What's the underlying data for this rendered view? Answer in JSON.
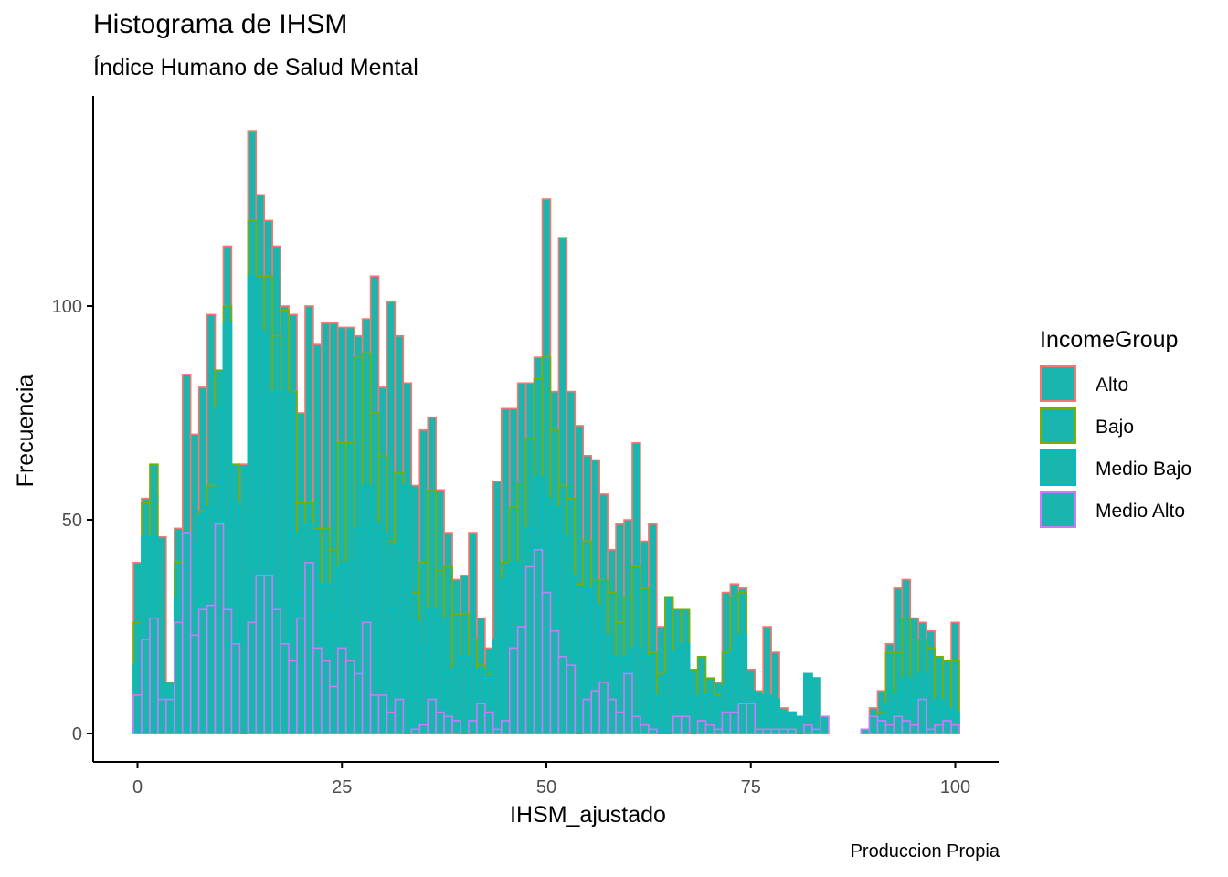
{
  "title": "Histograma de IHSM",
  "subtitle": "Índice Humano de Salud Mental",
  "caption": "Produccion Propia",
  "chart_data": {
    "type": "bar",
    "stacked": true,
    "xlabel": "IHSM_ajustado",
    "ylabel": "Frecuencia",
    "xlim": [
      -1,
      102
    ],
    "ylim": [
      0,
      143
    ],
    "x_ticks": [
      0,
      25,
      50,
      75,
      100
    ],
    "y_ticks": [
      0,
      50,
      100
    ],
    "x_tick_labels": [
      "0",
      "25",
      "50",
      "75",
      "100"
    ],
    "y_tick_labels": [
      "0",
      "50",
      "100"
    ],
    "grid": false,
    "legend_position": "right",
    "legend_title": "IncomeGroup",
    "fill_color": "#1ab5ad",
    "x": [
      0,
      1,
      2,
      3,
      4,
      5,
      6,
      7,
      8,
      9,
      10,
      11,
      12,
      13,
      14,
      15,
      16,
      17,
      18,
      19,
      20,
      21,
      22,
      23,
      24,
      25,
      26,
      27,
      28,
      29,
      30,
      31,
      32,
      33,
      34,
      35,
      36,
      37,
      38,
      39,
      40,
      41,
      42,
      43,
      44,
      45,
      46,
      47,
      48,
      49,
      50,
      51,
      52,
      53,
      54,
      55,
      56,
      57,
      58,
      59,
      60,
      61,
      62,
      63,
      64,
      65,
      66,
      67,
      68,
      69,
      70,
      71,
      72,
      73,
      74,
      75,
      76,
      77,
      78,
      79,
      80,
      81,
      82,
      83,
      84,
      85,
      86,
      87,
      88,
      89,
      90,
      91,
      92,
      93,
      94,
      95,
      96,
      97,
      98,
      99,
      100
    ],
    "series": [
      {
        "name": "Medio Alto",
        "color": "#c77cff",
        "values": [
          9,
          22,
          27,
          8,
          8,
          26,
          47,
          23,
          29,
          30,
          49,
          29,
          21,
          0,
          26,
          37,
          37,
          29,
          21,
          17,
          27,
          40,
          20,
          17,
          11,
          20,
          17,
          14,
          26,
          9,
          9,
          5,
          8,
          0,
          1,
          2,
          8,
          5,
          4,
          3,
          0,
          3,
          7,
          5,
          1,
          3,
          20,
          25,
          39,
          43,
          33,
          24,
          18,
          16,
          0,
          8,
          10,
          12,
          8,
          5,
          14,
          4,
          2,
          1,
          0,
          0,
          4,
          4,
          0,
          3,
          2,
          1,
          5,
          5,
          7,
          7,
          1,
          1,
          1,
          1,
          1,
          0,
          2,
          1,
          4,
          0,
          0,
          0,
          0,
          1,
          4,
          3,
          2,
          4,
          3,
          2,
          8,
          1,
          2,
          3,
          2
        ],
        "tops": [
          9,
          22,
          27,
          8,
          8,
          26,
          47,
          23,
          29,
          30,
          49,
          29,
          21,
          0,
          26,
          37,
          37,
          29,
          21,
          17,
          27,
          40,
          20,
          17,
          11,
          20,
          17,
          14,
          26,
          9,
          9,
          5,
          8,
          0,
          1,
          2,
          8,
          5,
          4,
          3,
          0,
          3,
          7,
          5,
          1,
          3,
          20,
          25,
          39,
          43,
          33,
          24,
          18,
          16,
          0,
          8,
          10,
          12,
          8,
          5,
          14,
          4,
          2,
          1,
          0,
          0,
          4,
          4,
          0,
          3,
          2,
          1,
          5,
          5,
          7,
          7,
          1,
          1,
          1,
          1,
          1,
          0,
          2,
          1,
          4,
          0,
          0,
          0,
          0,
          1,
          4,
          3,
          2,
          4,
          3,
          2,
          8,
          1,
          2,
          3,
          2
        ]
      },
      {
        "name": "Medio Bajo",
        "color": "#00bfc4",
        "values": [
          7,
          24,
          19,
          4,
          2,
          6,
          0,
          21,
          22,
          23,
          27,
          67,
          33,
          52,
          81,
          57,
          42,
          51,
          59,
          30,
          6,
          9,
          15,
          18,
          17,
          19,
          23,
          34,
          32,
          40,
          38,
          24,
          36,
          58,
          25,
          18,
          21,
          22,
          10,
          12,
          18,
          12,
          8,
          8,
          21,
          33,
          20,
          13,
          9,
          17,
          22,
          29,
          28,
          21,
          27,
          26,
          20,
          11,
          10,
          12,
          4,
          16,
          16,
          8,
          8,
          14,
          15,
          17,
          8,
          6,
          7,
          5,
          6,
          14,
          16,
          3,
          7,
          8,
          7,
          3,
          4,
          4,
          12,
          12,
          0,
          0,
          0,
          0,
          0,
          0,
          0,
          1,
          5,
          5,
          10,
          6,
          6,
          5,
          6,
          3,
          3
        ],
        "tops": [
          16,
          46,
          46,
          12,
          10,
          32,
          47,
          44,
          51,
          53,
          76,
          96,
          54,
          52,
          107,
          94,
          79,
          80,
          80,
          47,
          33,
          49,
          35,
          35,
          28,
          39,
          40,
          48,
          58,
          49,
          47,
          29,
          44,
          58,
          26,
          20,
          29,
          27,
          14,
          15,
          18,
          15,
          15,
          13,
          22,
          36,
          40,
          38,
          48,
          60,
          55,
          53,
          46,
          37,
          27,
          34,
          30,
          23,
          18,
          17,
          18,
          20,
          18,
          9,
          8,
          14,
          19,
          21,
          8,
          9,
          9,
          6,
          11,
          19,
          23,
          10,
          8,
          9,
          8,
          4,
          5,
          4,
          14,
          13,
          4,
          0,
          0,
          0,
          0,
          1,
          4,
          4,
          7,
          9,
          13,
          8,
          14,
          6,
          8,
          6,
          5
        ]
      },
      {
        "name": "Bajo",
        "color": "#7cae00",
        "values": [
          10,
          8,
          17,
          0,
          2,
          8,
          0,
          0,
          1,
          5,
          9,
          4,
          9,
          0,
          13,
          13,
          28,
          13,
          19,
          33,
          21,
          5,
          13,
          13,
          15,
          29,
          28,
          40,
          31,
          26,
          18,
          16,
          17,
          0,
          7,
          20,
          28,
          11,
          25,
          13,
          10,
          7,
          1,
          1,
          0,
          4,
          13,
          21,
          21,
          23,
          33,
          18,
          12,
          18,
          8,
          11,
          6,
          13,
          15,
          9,
          14,
          19,
          16,
          10,
          6,
          18,
          10,
          8,
          7,
          9,
          4,
          3,
          8,
          13,
          10,
          0,
          0,
          0,
          0,
          0,
          0,
          0,
          0,
          0,
          0,
          0,
          0,
          0,
          0,
          0,
          0,
          1,
          12,
          10,
          14,
          14,
          8,
          14,
          10,
          11,
          12
        ],
        "tops": [
          26,
          54,
          63,
          12,
          12,
          40,
          47,
          44,
          52,
          58,
          85,
          100,
          63,
          52,
          120,
          107,
          107,
          93,
          99,
          80,
          54,
          54,
          48,
          48,
          43,
          68,
          68,
          88,
          89,
          75,
          65,
          45,
          61,
          58,
          33,
          40,
          57,
          38,
          39,
          28,
          28,
          22,
          16,
          14,
          22,
          40,
          53,
          59,
          69,
          83,
          88,
          71,
          58,
          55,
          35,
          45,
          36,
          36,
          33,
          26,
          32,
          39,
          34,
          19,
          14,
          32,
          29,
          29,
          15,
          18,
          13,
          9,
          19,
          32,
          33,
          10,
          8,
          9,
          8,
          4,
          5,
          4,
          14,
          13,
          4,
          0,
          0,
          0,
          0,
          1,
          4,
          5,
          19,
          19,
          27,
          22,
          22,
          20,
          18,
          17,
          17
        ]
      },
      {
        "name": "Alto",
        "color": "#f8766d",
        "values": [
          14,
          1,
          -7,
          34,
          -12,
          8,
          37,
          26,
          29,
          40,
          -5,
          14,
          -6,
          11,
          21,
          20,
          13,
          21,
          1,
          18,
          21,
          46,
          43,
          48,
          53,
          27,
          27,
          5,
          8,
          32,
          16,
          56,
          32,
          24,
          25,
          31,
          17,
          19,
          8,
          9,
          9,
          25,
          11,
          6,
          37,
          36,
          23,
          23,
          13,
          5,
          37,
          9,
          58,
          25,
          37,
          20,
          28,
          20,
          10,
          23,
          18,
          29,
          11,
          30,
          11,
          -6,
          -1,
          -1,
          -5,
          -8,
          -3,
          3,
          14,
          3,
          1,
          5,
          2,
          16,
          11,
          2,
          0,
          0,
          0,
          0,
          0,
          0,
          0,
          0,
          0,
          2,
          2,
          5,
          2,
          15,
          9,
          1,
          4,
          0,
          0,
          0,
          9
        ],
        "tops": [
          40,
          55,
          56,
          46,
          0,
          48,
          84,
          70,
          81,
          98,
          80,
          114,
          57,
          63,
          141,
          126,
          120,
          114,
          100,
          98,
          75,
          100,
          91,
          96,
          96,
          95,
          95,
          93,
          97,
          107,
          81,
          101,
          93,
          82,
          58,
          71,
          74,
          57,
          47,
          36,
          37,
          47,
          27,
          20,
          59,
          76,
          76,
          82,
          82,
          88,
          125,
          80,
          116,
          80,
          72,
          65,
          64,
          56,
          43,
          49,
          50,
          68,
          45,
          49,
          25,
          26,
          28,
          28,
          10,
          10,
          10,
          12,
          33,
          35,
          34,
          15,
          10,
          25,
          19,
          6,
          5,
          4,
          14,
          13,
          4,
          0,
          0,
          0,
          0,
          1,
          6,
          10,
          21,
          34,
          36,
          27,
          26,
          24,
          18,
          17,
          26
        ]
      }
    ]
  }
}
